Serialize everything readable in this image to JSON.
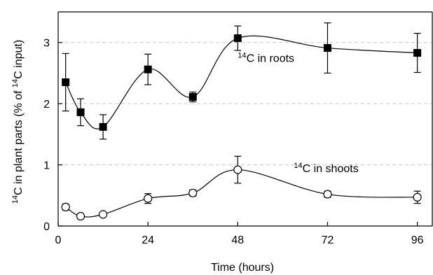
{
  "chart_data": {
    "type": "scatter",
    "xlabel": "Time (hours)",
    "ylabel": {
      "parts": [
        "",
        "14",
        "C in plant parts (% of ",
        "14",
        "C input)"
      ]
    },
    "xlim": [
      0,
      100
    ],
    "ylim": [
      0,
      3.5
    ],
    "xticks": [
      0,
      24,
      48,
      72,
      96
    ],
    "yticks": [
      0,
      1,
      2,
      3
    ],
    "grid": "horizontal dashed at 1, 2, 3",
    "legend": "none",
    "series": [
      {
        "marker": "filled-square",
        "color": "#000000",
        "annotation": {
          "sup": "14",
          "text": "C in roots",
          "at": [
            48,
            2.68
          ]
        },
        "points": [
          {
            "x": 2,
            "y": 2.35,
            "err": 0.47
          },
          {
            "x": 6,
            "y": 1.86,
            "err": 0.22
          },
          {
            "x": 12,
            "y": 1.62,
            "err": 0.2
          },
          {
            "x": 24,
            "y": 2.56,
            "err": 0.25
          },
          {
            "x": 36,
            "y": 2.11,
            "err": 0.08
          },
          {
            "x": 48,
            "y": 3.07,
            "err": 0.2
          },
          {
            "x": 72,
            "y": 2.91,
            "err": 0.41
          },
          {
            "x": 96,
            "y": 2.83,
            "err": 0.32
          }
        ]
      },
      {
        "marker": "open-circle",
        "color": "#000000",
        "annotation": {
          "sup": "14",
          "text": "C in shoots",
          "at": [
            63,
            0.88
          ]
        },
        "points": [
          {
            "x": 2,
            "y": 0.31,
            "err": 0.05
          },
          {
            "x": 6,
            "y": 0.16,
            "err": 0.03
          },
          {
            "x": 12,
            "y": 0.19,
            "err": 0.03
          },
          {
            "x": 24,
            "y": 0.45,
            "err": 0.08
          },
          {
            "x": 36,
            "y": 0.54,
            "err": 0.05
          },
          {
            "x": 48,
            "y": 0.92,
            "err": 0.22
          },
          {
            "x": 72,
            "y": 0.52,
            "err": 0.05
          },
          {
            "x": 96,
            "y": 0.47,
            "err": 0.1
          }
        ]
      }
    ]
  }
}
